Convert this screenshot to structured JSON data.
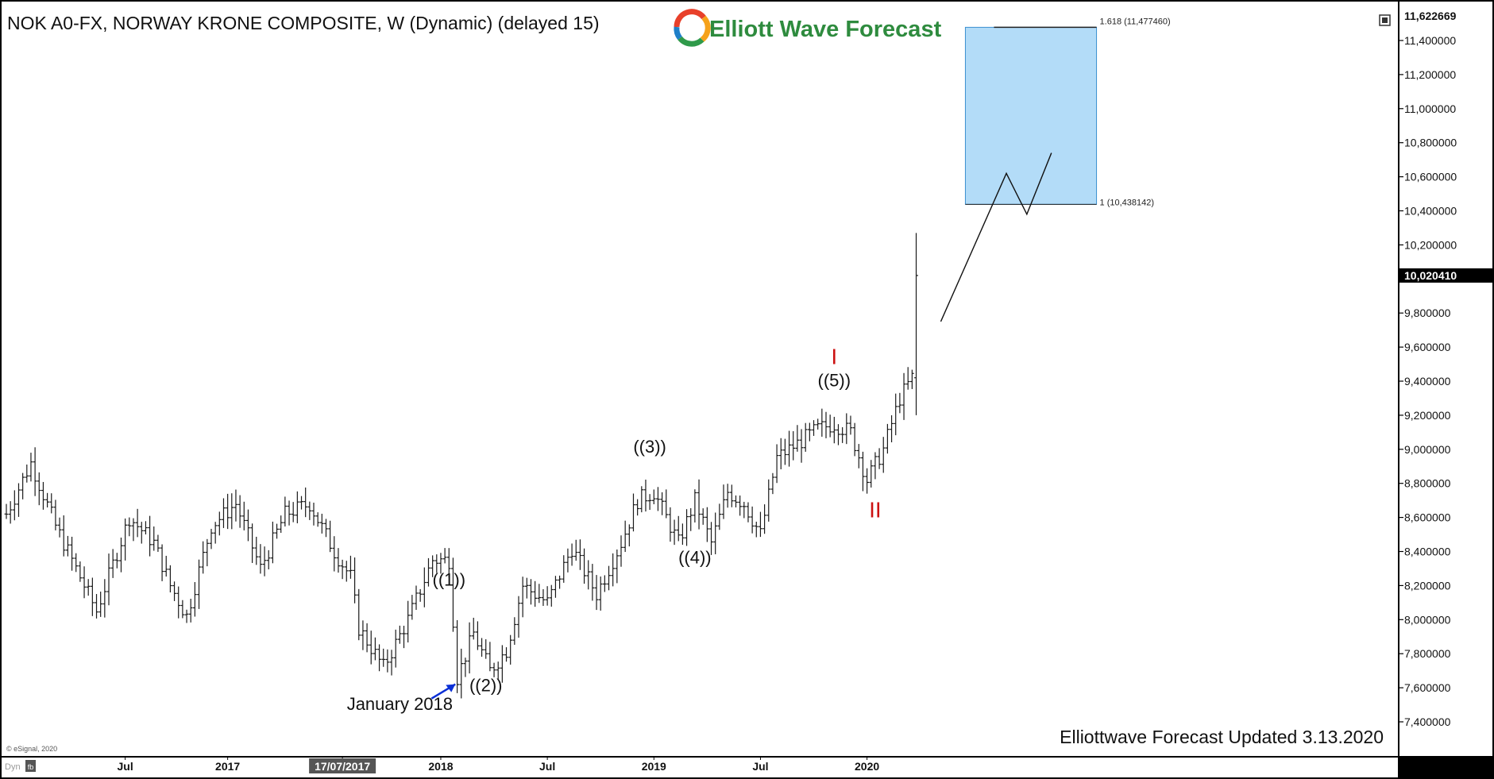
{
  "header": {
    "title": "NOK A0-FX, NORWAY KRONE COMPOSITE, W (Dynamic) (delayed 15)"
  },
  "logo": {
    "text": "Elliott Wave Forecast"
  },
  "footer": {
    "updated": "Elliottwave Forecast Updated 3.13.2020",
    "copyright": "© eSignal, 2020",
    "corner_label": "Dyn",
    "corner_icon": "fib-icon"
  },
  "colors": {
    "background": "#ffffff",
    "frame": "#000000",
    "bars": "#1a1a1a",
    "target_box": "#b3dcf8",
    "target_box_border": "#3a8fd0",
    "wave_label_red": "#cc1111",
    "arrow": "#0a2fd6"
  },
  "chart_data": {
    "type": "ohlc",
    "title": "NOK A0-FX, NORWAY KRONE COMPOSITE, W (Dynamic) (delayed 15)",
    "timeframe": "W",
    "ylim": [
      7.29,
      11.622669
    ],
    "y_ticks": [
      {
        "value": 11.4,
        "label": "11,400000"
      },
      {
        "value": 11.2,
        "label": "11,200000"
      },
      {
        "value": 11.0,
        "label": "11,000000"
      },
      {
        "value": 10.8,
        "label": "10,800000"
      },
      {
        "value": 10.6,
        "label": "10,600000"
      },
      {
        "value": 10.4,
        "label": "10,400000"
      },
      {
        "value": 10.2,
        "label": "10,200000"
      },
      {
        "value": 9.8,
        "label": "9,800000"
      },
      {
        "value": 9.6,
        "label": "9,600000"
      },
      {
        "value": 9.4,
        "label": "9,400000"
      },
      {
        "value": 9.2,
        "label": "9,200000"
      },
      {
        "value": 9.0,
        "label": "9,000000"
      },
      {
        "value": 8.8,
        "label": "8,800000"
      },
      {
        "value": 8.6,
        "label": "8,600000"
      },
      {
        "value": 8.4,
        "label": "8,400000"
      },
      {
        "value": 8.2,
        "label": "8,200000"
      },
      {
        "value": 8.0,
        "label": "8,000000"
      },
      {
        "value": 7.8,
        "label": "7,800000"
      },
      {
        "value": 7.6,
        "label": "7,600000"
      },
      {
        "value": 7.4,
        "label": "7,400000"
      }
    ],
    "top_price": {
      "value": 11.622669,
      "label": "11,622669"
    },
    "last_price": {
      "value": 10.02041,
      "label": "10,020410"
    },
    "x_ticks": [
      {
        "week": 29,
        "label": "Jul"
      },
      {
        "week": 54,
        "label": "2017"
      },
      {
        "week": 82,
        "label": "17/07/2017",
        "highlight": true
      },
      {
        "week": 106,
        "label": "2018"
      },
      {
        "week": 132,
        "label": "Jul"
      },
      {
        "week": 158,
        "label": "2019"
      },
      {
        "week": 184,
        "label": "Jul"
      },
      {
        "week": 210,
        "label": "2020"
      }
    ],
    "anchors": [
      [
        0,
        8.62
      ],
      [
        6,
        8.92
      ],
      [
        12,
        8.55
      ],
      [
        22,
        8.05
      ],
      [
        30,
        8.6
      ],
      [
        36,
        8.45
      ],
      [
        40,
        8.2
      ],
      [
        44,
        8.02
      ],
      [
        50,
        8.55
      ],
      [
        56,
        8.68
      ],
      [
        62,
        8.3
      ],
      [
        68,
        8.62
      ],
      [
        74,
        8.68
      ],
      [
        80,
        8.4
      ],
      [
        84,
        8.25
      ],
      [
        86,
        7.95
      ],
      [
        92,
        7.72
      ],
      [
        98,
        8.0
      ],
      [
        104,
        8.35
      ],
      [
        108,
        8.35
      ],
      [
        110,
        7.66
      ],
      [
        114,
        7.92
      ],
      [
        118,
        7.7
      ],
      [
        122,
        7.82
      ],
      [
        126,
        8.2
      ],
      [
        132,
        8.1
      ],
      [
        138,
        8.42
      ],
      [
        144,
        8.15
      ],
      [
        150,
        8.45
      ],
      [
        154,
        8.7
      ],
      [
        158,
        8.75
      ],
      [
        164,
        8.45
      ],
      [
        168,
        8.7
      ],
      [
        172,
        8.45
      ],
      [
        176,
        8.75
      ],
      [
        180,
        8.68
      ],
      [
        184,
        8.5
      ],
      [
        188,
        8.95
      ],
      [
        194,
        9.05
      ],
      [
        198,
        9.12
      ],
      [
        202,
        9.15
      ],
      [
        206,
        9.1
      ],
      [
        210,
        8.82
      ],
      [
        214,
        9.0
      ],
      [
        218,
        9.3
      ],
      [
        221,
        9.42
      ],
      [
        222,
        9.95
      ]
    ],
    "waves": [
      {
        "label": "((1))",
        "week": 108,
        "price": 8.2,
        "color": "black"
      },
      {
        "label": "((2))",
        "week": 117,
        "price": 7.58,
        "color": "black"
      },
      {
        "label": "((3))",
        "week": 157,
        "price": 8.98,
        "color": "black"
      },
      {
        "label": "((4))",
        "week": 168,
        "price": 8.33,
        "color": "black"
      },
      {
        "label": "((5))",
        "week": 202,
        "price": 9.37,
        "color": "black"
      },
      {
        "label": "I",
        "week": 202,
        "price": 9.5,
        "color": "red"
      },
      {
        "label": "II",
        "week": 212,
        "price": 8.6,
        "color": "red"
      }
    ],
    "annotation": {
      "label": "January 2018",
      "week": 108,
      "price": 7.63,
      "text_week": 96,
      "text_price": 7.47
    },
    "target_box": {
      "week_start": 234,
      "week_end": 266,
      "price_low": 10.438142,
      "price_high": 11.47746,
      "level_low_label": "1 (10,438142)",
      "level_high_label": "1.618 (11,477460)"
    },
    "projection": [
      [
        228,
        9.75
      ],
      [
        244,
        10.62
      ],
      [
        249,
        10.38
      ],
      [
        255,
        10.74
      ]
    ],
    "x_range": [
      0,
      337
    ]
  }
}
